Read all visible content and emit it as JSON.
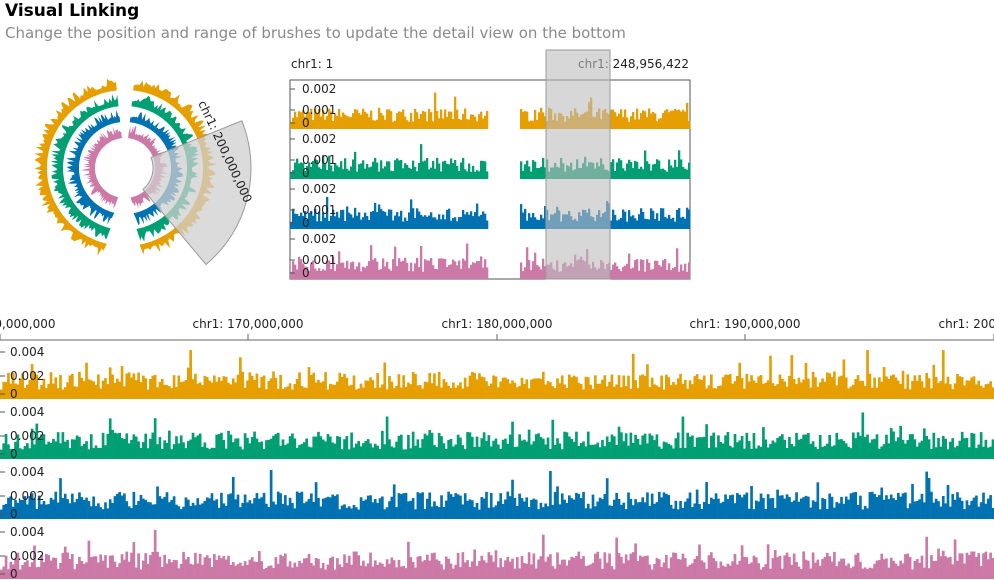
{
  "header": {
    "title": "Visual Linking",
    "subtitle": "Change the position and range of brushes to update the detail view on the bottom"
  },
  "colors": {
    "tracks": [
      "#E69F00",
      "#009E73",
      "#0072B2",
      "#CC79A7"
    ],
    "brush": "#cfcfcf",
    "axis": "#777777"
  },
  "circular_view": {
    "brush_label": "chr1: 200,000,000"
  },
  "overview": {
    "start_label": "chr1: 1",
    "end_label": "chr1: 248,956,422",
    "y_ticks": [
      "0.002",
      "0.001",
      "0"
    ],
    "brush_range_fraction": [
      0.64,
      0.8
    ]
  },
  "detail": {
    "x_ticks": [
      "chr1: 160,000,000",
      "chr1: 170,000,000",
      "chr1: 180,000,000",
      "chr1: 190,000,000",
      "chr1: 200,000,000"
    ],
    "y_ticks": [
      "0.004",
      "0.002",
      "0"
    ]
  }
}
